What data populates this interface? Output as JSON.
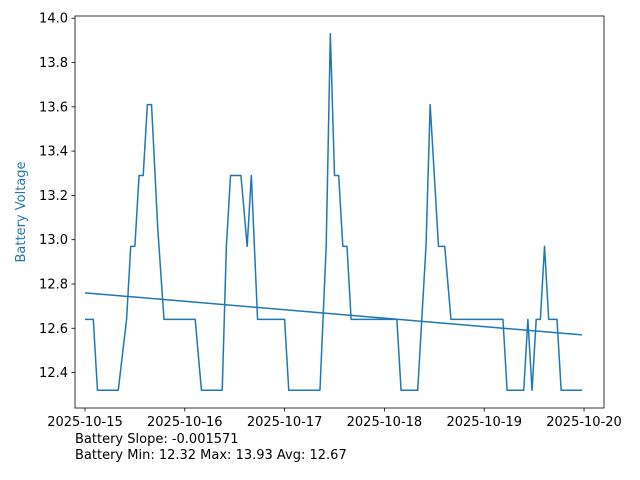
{
  "chart_data": {
    "type": "line",
    "xlabel": "",
    "ylabel": "Battery Voltage",
    "x_ticks": [
      "2025-10-15",
      "2025-10-16",
      "2025-10-17",
      "2025-10-18",
      "2025-10-19",
      "2025-10-20"
    ],
    "y_ticks": [
      "12.4",
      "12.6",
      "12.8",
      "13.0",
      "13.2",
      "13.4",
      "13.6",
      "13.8",
      "14.0"
    ],
    "xlim": [
      "2025-10-14 21:36",
      "2025-10-20 04:48"
    ],
    "ylim": [
      12.24,
      14.01
    ],
    "grid": false,
    "colors": {
      "series": "#1f77b4",
      "ylabel": "#1f77b4",
      "axes": "#000000"
    },
    "series": [
      {
        "x": [
          "2025-10-15 00:00",
          "2025-10-15 02:00",
          "2025-10-15 03:00",
          "2025-10-15 08:00",
          "2025-10-15 10:00",
          "2025-10-15 11:00",
          "2025-10-15 12:00",
          "2025-10-15 13:00",
          "2025-10-15 14:00",
          "2025-10-15 15:00",
          "2025-10-15 16:00",
          "2025-10-15 17:30",
          "2025-10-15 19:00",
          "2025-10-16 02:30",
          "2025-10-16 04:00",
          "2025-10-16 09:00",
          "2025-10-16 10:00",
          "2025-10-16 11:00",
          "2025-10-16 13:30",
          "2025-10-16 15:00",
          "2025-10-16 16:00",
          "2025-10-16 17:30",
          "2025-10-16 18:30",
          "2025-10-17 00:00",
          "2025-10-17 01:00",
          "2025-10-17 08:30",
          "2025-10-17 10:00",
          "2025-10-17 11:00",
          "2025-10-17 12:00",
          "2025-10-17 13:00",
          "2025-10-17 14:00",
          "2025-10-17 15:00",
          "2025-10-17 16:00",
          "2025-10-18 03:00",
          "2025-10-18 04:00",
          "2025-10-18 08:00",
          "2025-10-18 10:00",
          "2025-10-18 11:00",
          "2025-10-18 13:00",
          "2025-10-18 14:30",
          "2025-10-18 16:00",
          "2025-10-19 04:30",
          "2025-10-19 05:30",
          "2025-10-19 09:30",
          "2025-10-19 10:30",
          "2025-10-19 11:30",
          "2025-10-19 12:30",
          "2025-10-19 13:30",
          "2025-10-19 14:30",
          "2025-10-19 15:30",
          "2025-10-19 17:30",
          "2025-10-19 18:30",
          "2025-10-19 23:30"
        ],
        "y": [
          12.64,
          12.64,
          12.32,
          12.32,
          12.64,
          12.97,
          12.97,
          13.29,
          13.29,
          13.61,
          13.61,
          13.05,
          12.64,
          12.64,
          12.32,
          12.32,
          12.97,
          13.29,
          13.29,
          12.97,
          13.29,
          12.64,
          12.64,
          12.64,
          12.32,
          12.32,
          12.97,
          13.93,
          13.29,
          13.29,
          12.97,
          12.97,
          12.64,
          12.64,
          12.32,
          12.32,
          12.97,
          13.61,
          12.97,
          12.97,
          12.64,
          12.64,
          12.32,
          12.32,
          12.64,
          12.32,
          12.64,
          12.64,
          12.97,
          12.64,
          12.64,
          12.32,
          12.32
        ]
      },
      {
        "x": [
          "2025-10-15 00:00",
          "2025-10-19 23:30"
        ],
        "y": [
          12.76,
          12.57
        ]
      }
    ]
  },
  "stats": {
    "slope_line": "Battery Slope: -0.001571",
    "minmax_line": "Battery Min: 12.32 Max: 13.93 Avg: 12.67"
  }
}
